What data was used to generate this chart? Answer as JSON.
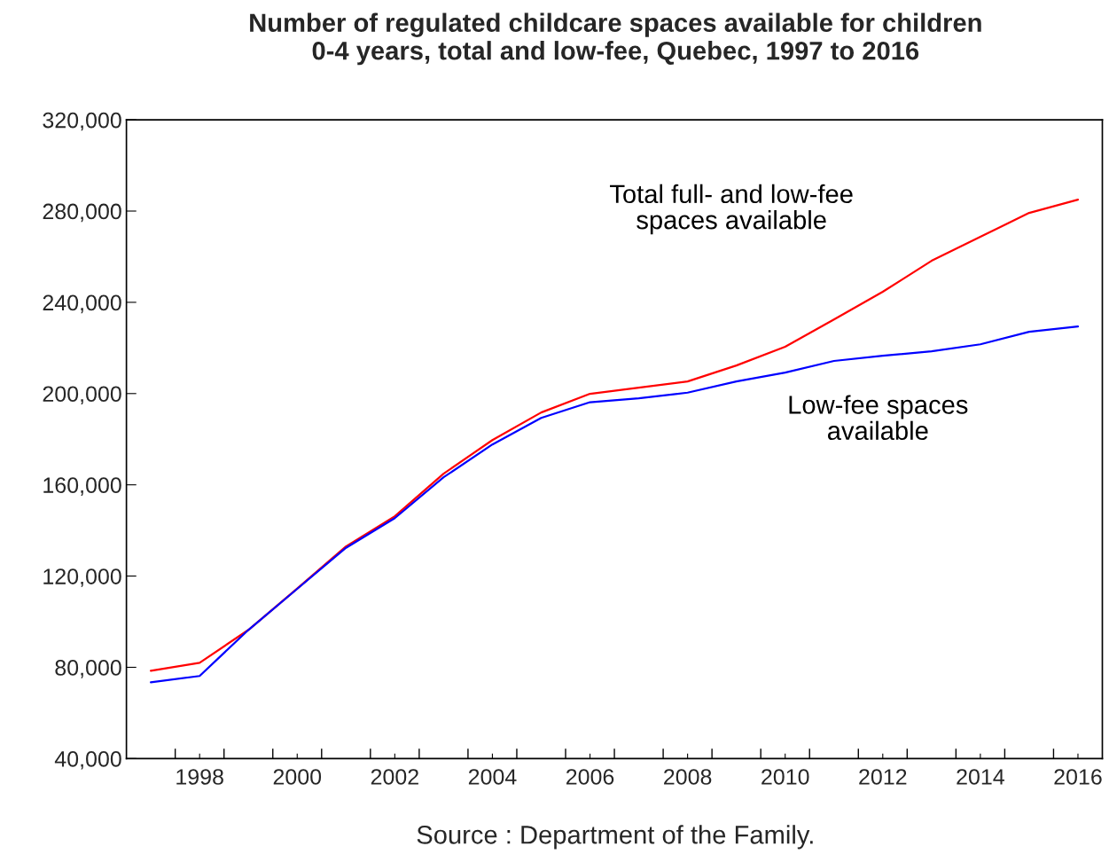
{
  "chart_data": {
    "type": "line",
    "title": "Number of regulated childcare spaces available for children\n0-4 years, total and low-fee, Quebec, 1997 to 2016",
    "x": [
      1997,
      1998,
      1999,
      2000,
      2001,
      2002,
      2003,
      2004,
      2005,
      2006,
      2007,
      2008,
      2009,
      2010,
      2011,
      2012,
      2013,
      2014,
      2015,
      2016
    ],
    "series": [
      {
        "name": "Total full- and low-fee\nspaces available",
        "color": "#ff0000",
        "values": [
          78500,
          82000,
          96400,
          114500,
          133000,
          146200,
          164900,
          179600,
          191700,
          199900,
          202600,
          205300,
          212300,
          220500,
          232500,
          244600,
          258200,
          268700,
          279200,
          285000
        ]
      },
      {
        "name": "Low-fee spaces\navailable",
        "color": "#0000ff",
        "values": [
          73400,
          76200,
          96400,
          114400,
          132400,
          145400,
          163300,
          177700,
          189300,
          196200,
          197900,
          200400,
          205300,
          209200,
          214300,
          216600,
          218500,
          221600,
          227100,
          229400
        ]
      }
    ],
    "xlim": [
      1996.5,
      2016.5
    ],
    "xticks": [
      {
        "value": 1997.5,
        "label": null
      },
      {
        "value": 1998,
        "label": "1998"
      },
      {
        "value": 1998.5,
        "label": null
      },
      {
        "value": 1999.5,
        "label": null
      },
      {
        "value": 2000,
        "label": "2000"
      },
      {
        "value": 2000.5,
        "label": null
      },
      {
        "value": 2001.5,
        "label": null
      },
      {
        "value": 2002,
        "label": "2002"
      },
      {
        "value": 2002.5,
        "label": null
      },
      {
        "value": 2003.5,
        "label": null
      },
      {
        "value": 2004,
        "label": "2004"
      },
      {
        "value": 2004.5,
        "label": null
      },
      {
        "value": 2005.5,
        "label": null
      },
      {
        "value": 2006,
        "label": "2006"
      },
      {
        "value": 2006.5,
        "label": null
      },
      {
        "value": 2007.5,
        "label": null
      },
      {
        "value": 2008,
        "label": "2008"
      },
      {
        "value": 2008.5,
        "label": null
      },
      {
        "value": 2009.5,
        "label": null
      },
      {
        "value": 2010,
        "label": "2010"
      },
      {
        "value": 2010.5,
        "label": null
      },
      {
        "value": 2011.5,
        "label": null
      },
      {
        "value": 2012,
        "label": "2012"
      },
      {
        "value": 2012.5,
        "label": null
      },
      {
        "value": 2013.5,
        "label": null
      },
      {
        "value": 2014,
        "label": "2014"
      },
      {
        "value": 2014.5,
        "label": null
      },
      {
        "value": 2015.5,
        "label": null
      },
      {
        "value": 2016,
        "label": "2016"
      }
    ],
    "ylim": [
      40000,
      320000
    ],
    "yticks": [
      {
        "value": 40000,
        "label": "40,000"
      },
      {
        "value": 80000,
        "label": "80,000"
      },
      {
        "value": 120000,
        "label": "120,000"
      },
      {
        "value": 160000,
        "label": "160,000"
      },
      {
        "value": 200000,
        "label": "200,000"
      },
      {
        "value": 240000,
        "label": "240,000"
      },
      {
        "value": 280000,
        "label": "280,000"
      },
      {
        "value": 320000,
        "label": "320,000"
      }
    ],
    "annotations": [
      "Source : Department of the Family."
    ],
    "grid": false,
    "legend": false
  }
}
